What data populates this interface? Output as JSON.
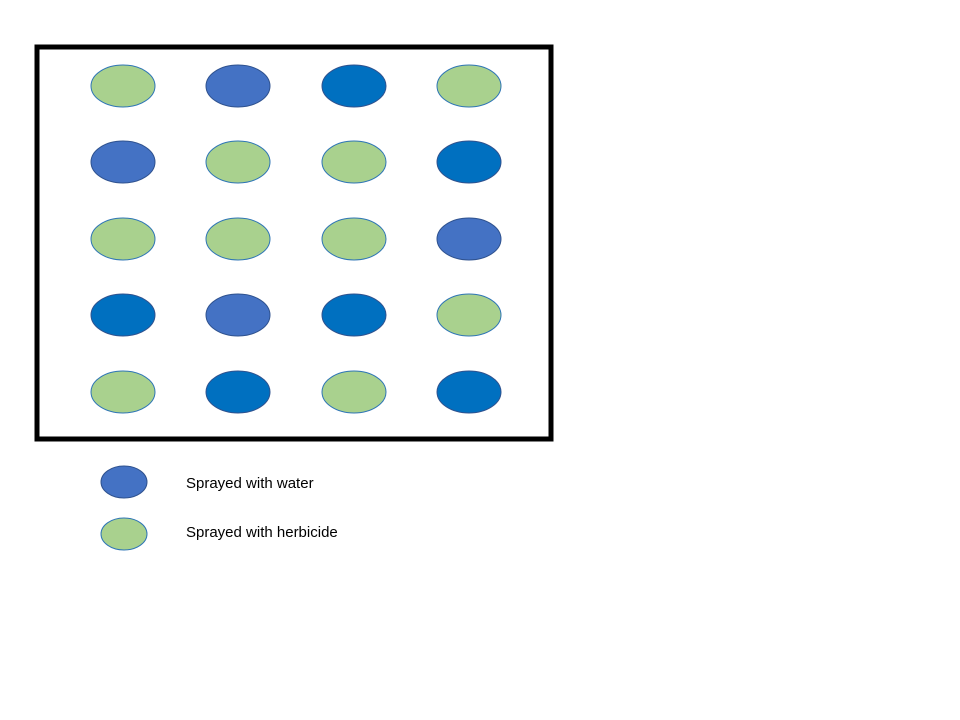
{
  "colors": {
    "water": "#4472c4",
    "water_alt": "#0070c0",
    "herbicide": "#a9d18e",
    "frame": "#000000"
  },
  "grid": {
    "rows": 5,
    "cols": 4,
    "plants": [
      [
        "herbicide",
        "water",
        "water_alt",
        "herbicide"
      ],
      [
        "water",
        "herbicide",
        "herbicide",
        "water_alt"
      ],
      [
        "herbicide",
        "herbicide",
        "herbicide",
        "water"
      ],
      [
        "water_alt",
        "water",
        "water_alt",
        "herbicide"
      ],
      [
        "herbicide",
        "water_alt",
        "herbicide",
        "water_alt"
      ]
    ]
  },
  "legend": {
    "water_label": "Sprayed with water",
    "herbicide_label": "Sprayed with herbicide"
  }
}
